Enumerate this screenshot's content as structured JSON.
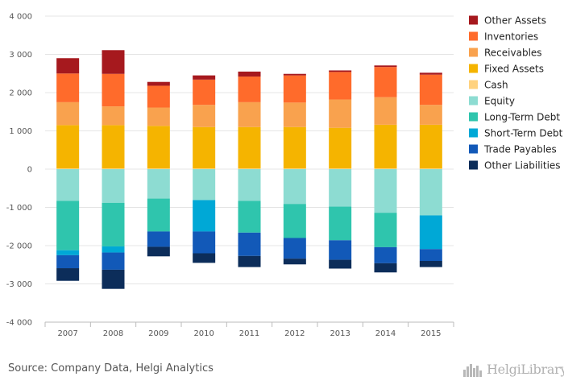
{
  "chart_data": {
    "type": "bar",
    "stacked": true,
    "categories": [
      "2007",
      "2008",
      "2009",
      "2010",
      "2011",
      "2012",
      "2013",
      "2014",
      "2015"
    ],
    "ylim": [
      -4000,
      4000
    ],
    "yticks": [
      4000,
      3000,
      2000,
      1000,
      0,
      -1000,
      -2000,
      -3000,
      -4000
    ],
    "ytick_labels": [
      "4 000",
      "3 000",
      "2 000",
      "1 000",
      "0",
      "-1 000",
      "-2 000",
      "-3 000",
      "-4 000"
    ],
    "grid": true,
    "legend_position": "right",
    "series": [
      {
        "name": "Cash",
        "color": "#ffd27f",
        "values": [
          20,
          20,
          20,
          20,
          20,
          20,
          20,
          20,
          20
        ]
      },
      {
        "name": "Fixed Assets",
        "color": "#f5b400",
        "values": [
          1130,
          1130,
          1110,
          1080,
          1080,
          1080,
          1060,
          1140,
          1140
        ]
      },
      {
        "name": "Receivables",
        "color": "#f9a24e",
        "values": [
          600,
          490,
          480,
          580,
          650,
          640,
          740,
          720,
          520
        ]
      },
      {
        "name": "Inventories",
        "color": "#ff6b2b",
        "values": [
          750,
          850,
          570,
          660,
          670,
          710,
          720,
          790,
          790
        ]
      },
      {
        "name": "Other Assets",
        "color": "#a6191e",
        "values": [
          400,
          620,
          100,
          110,
          130,
          40,
          40,
          40,
          50
        ]
      },
      {
        "name": "Equity",
        "color": "#8ddcd2",
        "values": [
          -830,
          -880,
          -770,
          -810,
          -830,
          -910,
          -980,
          -1140,
          -1210
        ]
      },
      {
        "name": "Long-Term Debt",
        "color": "#2fc5ad",
        "values": [
          -1290,
          -1140,
          -860,
          0,
          -830,
          -890,
          -880,
          -900,
          0
        ]
      },
      {
        "name": "Short-Term Debt",
        "color": "#00a8d6",
        "values": [
          -130,
          -160,
          0,
          -820,
          0,
          0,
          0,
          0,
          -880
        ]
      },
      {
        "name": "Trade Payables",
        "color": "#1259b8",
        "values": [
          -340,
          -450,
          -400,
          -570,
          -610,
          -540,
          -510,
          -420,
          -310
        ]
      },
      {
        "name": "Other Liabilities",
        "color": "#0c2d5a",
        "values": [
          -330,
          -500,
          -250,
          -250,
          -290,
          -150,
          -230,
          -240,
          -160
        ]
      }
    ],
    "legend_order": [
      "Other Assets",
      "Inventories",
      "Receivables",
      "Fixed Assets",
      "Cash",
      "Equity",
      "Long-Term Debt",
      "Short-Term Debt",
      "Trade Payables",
      "Other Liabilities"
    ]
  },
  "footer": {
    "source": "Source: Company Data, Helgi Analytics",
    "brand": "HelgiLibrary",
    "brand_icon": "city-skyline-icon"
  }
}
